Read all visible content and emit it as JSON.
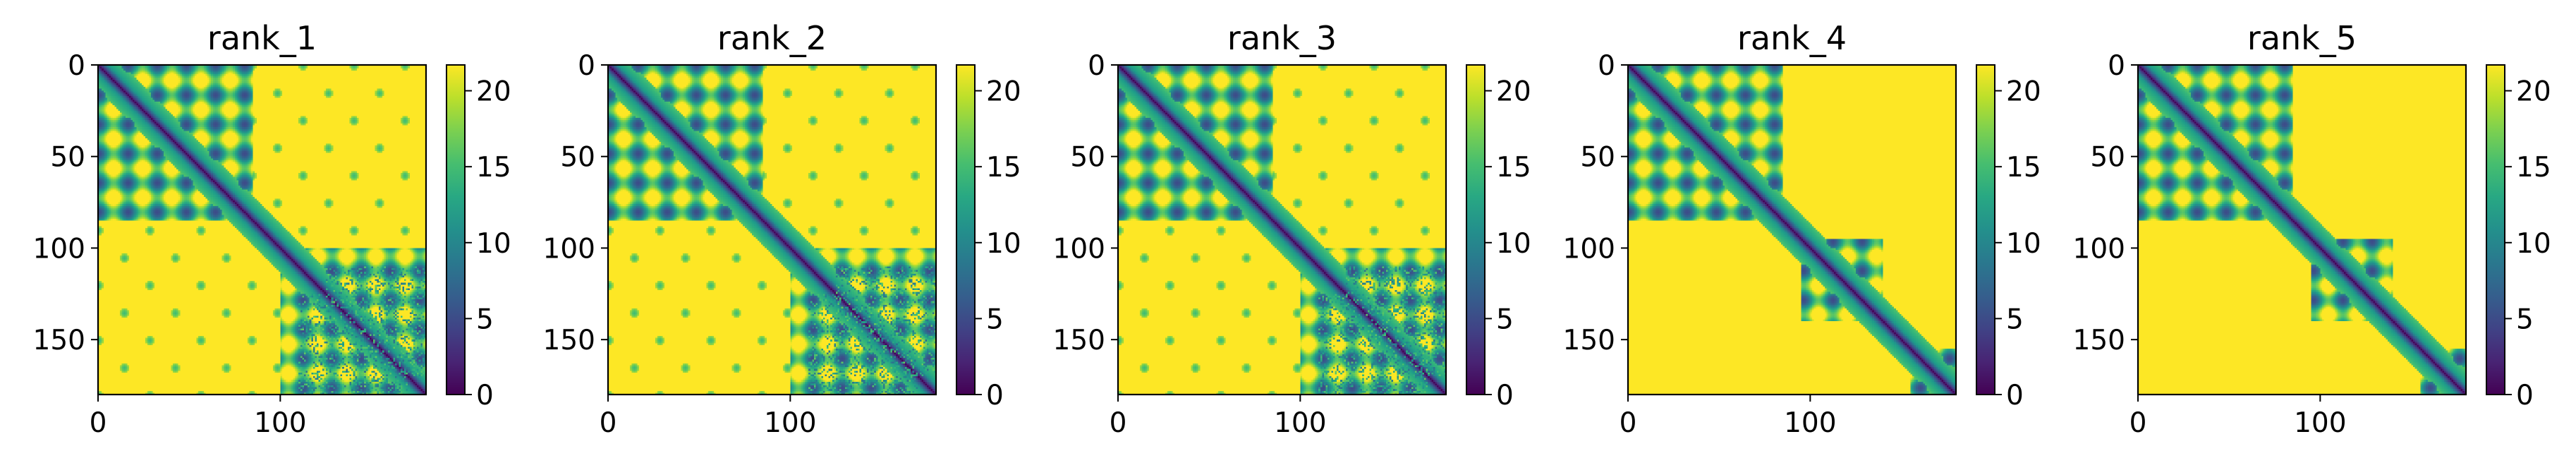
{
  "chart_data": {
    "type": "heatmap",
    "colormap": "viridis",
    "colors": {
      "low": "#440154",
      "mid_low": "#3b528b",
      "mid": "#21918c",
      "mid_high": "#5ec962",
      "high": "#fde725",
      "frame": "#000000",
      "background": "#ffffff"
    },
    "size": 180,
    "x_ticks": [
      0,
      100
    ],
    "y_ticks": [
      0,
      50,
      100,
      150
    ],
    "xlim": [
      0,
      180
    ],
    "ylim": [
      180,
      0
    ],
    "colorbar": {
      "ticks": [
        0,
        5,
        10,
        15,
        20
      ],
      "range": [
        0,
        21.7
      ]
    },
    "panels": [
      {
        "title": "rank_1",
        "domains": [
          [
            0,
            85
          ],
          [
            100,
            180
          ]
        ],
        "inter_domain_contacts": true,
        "speckled_region": [
          [
            110,
            170
          ],
          [
            125,
            180
          ]
        ]
      },
      {
        "title": "rank_2",
        "domains": [
          [
            0,
            85
          ],
          [
            100,
            180
          ]
        ],
        "inter_domain_contacts": true,
        "speckled_region": [
          [
            110,
            170
          ],
          [
            125,
            180
          ]
        ]
      },
      {
        "title": "rank_3",
        "domains": [
          [
            0,
            85
          ],
          [
            100,
            180
          ]
        ],
        "inter_domain_contacts": true,
        "speckled_region": [
          [
            110,
            170
          ],
          [
            125,
            180
          ]
        ]
      },
      {
        "title": "rank_4",
        "domains": [
          [
            0,
            85
          ],
          [
            95,
            140
          ],
          [
            155,
            180
          ]
        ],
        "inter_domain_contacts": false,
        "speckled_region": null
      },
      {
        "title": "rank_5",
        "domains": [
          [
            0,
            85
          ],
          [
            95,
            140
          ],
          [
            155,
            180
          ]
        ],
        "inter_domain_contacts": false,
        "speckled_region": null
      }
    ]
  }
}
